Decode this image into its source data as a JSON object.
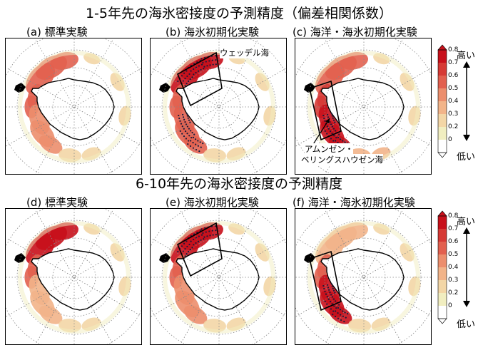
{
  "titles": {
    "top": "1-5年先の海氷密接度の予測精度（偏差相関係数）",
    "bottom": "6-10年先の海氷密接度の予測精度"
  },
  "panels": [
    {
      "id": "a",
      "label": "(a) 標準実験"
    },
    {
      "id": "b",
      "label": "(b) 海氷初期化実験"
    },
    {
      "id": "c",
      "label": "(c) 海洋・海氷初期化実験"
    },
    {
      "id": "d",
      "label": "(d) 標準実験"
    },
    {
      "id": "e",
      "label": "(e) 海氷初期化実験"
    },
    {
      "id": "f",
      "label": "(f) 海洋・海氷初期化実験"
    }
  ],
  "annotations": {
    "weddell": "ウェッデル海",
    "amundsen_line1": "アムンゼン・",
    "amundsen_line2": "ベリングスハウゼン海"
  },
  "colorbar": {
    "ticks": [
      "0.8",
      "0.7",
      "0.6",
      "0.5",
      "0.4",
      "0.3",
      "0.2",
      "0"
    ],
    "high_label": "高い",
    "low_label": "低い",
    "colors": [
      "#ffffff",
      "#f1eec0",
      "#f3d6a6",
      "#f2b489",
      "#ec8e6d",
      "#e2604f",
      "#d63a35",
      "#c8101b"
    ]
  },
  "chart_data": {
    "type": "heatmap",
    "projection": "south-polar-stereographic",
    "variable": "sea ice concentration anomaly correlation",
    "color_range": [
      0,
      0.8
    ],
    "panels": [
      {
        "id": "a",
        "lead": "1-5",
        "experiment": "標準実験",
        "regions": [
          {
            "region": "weddell",
            "value": 0.55
          },
          {
            "region": "peninsula",
            "value": 0.5
          },
          {
            "region": "amundsen-bellingshausen",
            "value": 0.45
          },
          {
            "region": "ross",
            "value": 0.25
          },
          {
            "region": "east",
            "value": 0.2
          }
        ],
        "stippled": []
      },
      {
        "id": "b",
        "lead": "1-5",
        "experiment": "海氷初期化実験",
        "regions": [
          {
            "region": "weddell",
            "value": 0.75
          },
          {
            "region": "peninsula",
            "value": 0.6
          },
          {
            "region": "amundsen-bellingshausen",
            "value": 0.6
          },
          {
            "region": "ross",
            "value": 0.3
          },
          {
            "region": "east",
            "value": 0.25
          }
        ],
        "stippled": [
          "weddell",
          "amundsen-bellingshausen"
        ]
      },
      {
        "id": "c",
        "lead": "1-5",
        "experiment": "海洋・海氷初期化実験",
        "regions": [
          {
            "region": "weddell",
            "value": 0.6
          },
          {
            "region": "peninsula",
            "value": 0.65
          },
          {
            "region": "amundsen-bellingshausen",
            "value": 0.75
          },
          {
            "region": "ross",
            "value": 0.35
          },
          {
            "region": "east",
            "value": 0.3
          }
        ],
        "stippled": [
          "amundsen-bellingshausen"
        ]
      },
      {
        "id": "d",
        "lead": "6-10",
        "experiment": "標準実験",
        "regions": [
          {
            "region": "weddell",
            "value": 0.75
          },
          {
            "region": "peninsula",
            "value": 0.5
          },
          {
            "region": "amundsen-bellingshausen",
            "value": 0.35
          },
          {
            "region": "ross",
            "value": 0.3
          },
          {
            "region": "east",
            "value": 0.25
          }
        ],
        "stippled": []
      },
      {
        "id": "e",
        "lead": "6-10",
        "experiment": "海氷初期化実験",
        "regions": [
          {
            "region": "weddell",
            "value": 0.75
          },
          {
            "region": "peninsula",
            "value": 0.55
          },
          {
            "region": "amundsen-bellingshausen",
            "value": 0.4
          },
          {
            "region": "ross",
            "value": 0.3
          },
          {
            "region": "east",
            "value": 0.3
          }
        ],
        "stippled": [
          "weddell"
        ]
      },
      {
        "id": "f",
        "lead": "6-10",
        "experiment": "海洋・海氷初期化実験",
        "regions": [
          {
            "region": "weddell",
            "value": 0.35
          },
          {
            "region": "peninsula",
            "value": 0.6
          },
          {
            "region": "amundsen-bellingshausen",
            "value": 0.75
          },
          {
            "region": "ross",
            "value": 0.2
          },
          {
            "region": "east",
            "value": 0.2
          }
        ],
        "stippled": [
          "amundsen-bellingshausen"
        ]
      }
    ]
  }
}
